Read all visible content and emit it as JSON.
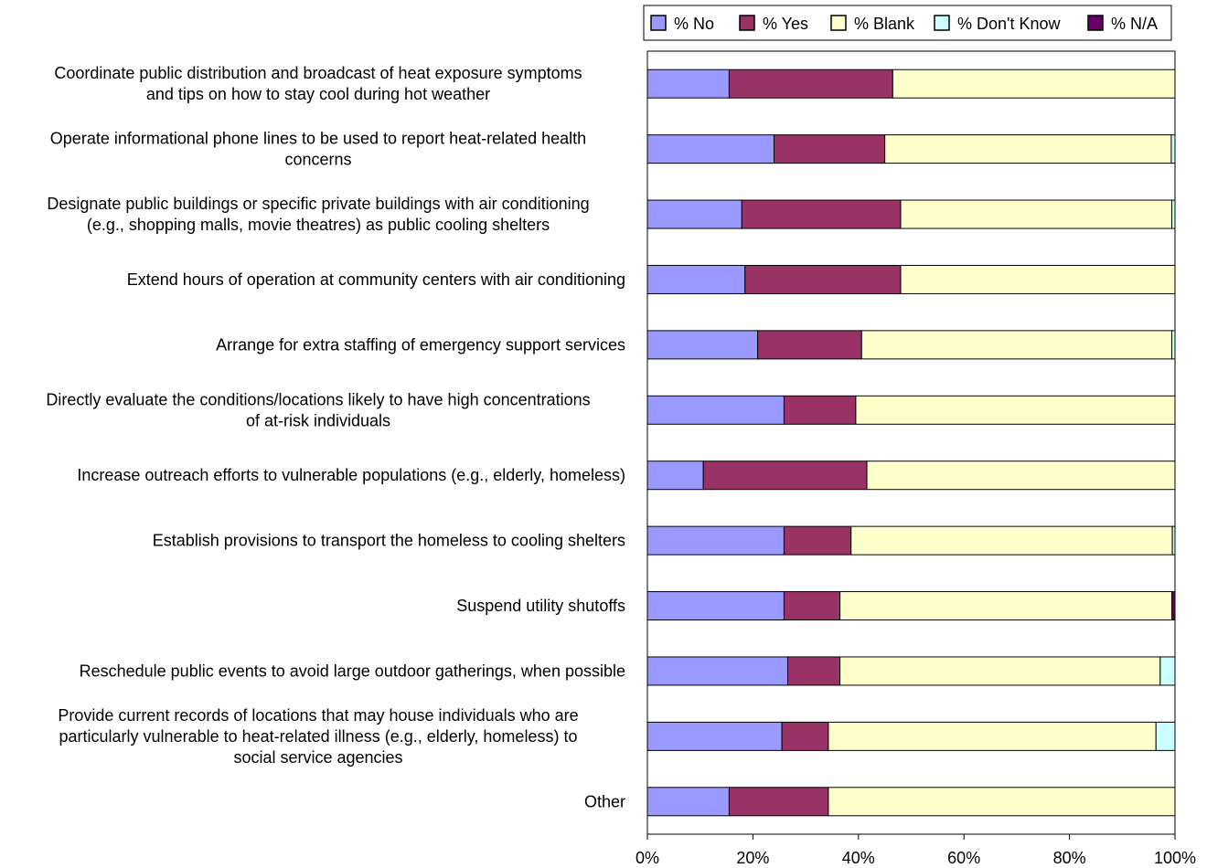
{
  "chart_data": {
    "type": "bar",
    "orientation": "horizontal",
    "stacked": true,
    "percent": true,
    "grid": true,
    "legend_position": "top",
    "categories": [
      "Coordinate public distribution and broadcast of heat exposure symptoms\nand tips on how to stay cool during hot weather",
      "Operate informational phone lines to be used to report heat-related health\nconcerns",
      "Designate public buildings or specific private buildings with air conditioning\n(e.g., shopping malls, movie theatres) as public cooling shelters",
      "Extend hours of operation at community centers with air conditioning",
      "Arrange for extra staffing of emergency support services",
      "Directly evaluate the conditions/locations likely to have high concentrations\nof at-risk individuals",
      "Increase outreach efforts to vulnerable populations (e.g., elderly, homeless)",
      "Establish provisions to transport the homeless to cooling shelters",
      "Suspend utility shutoffs",
      "Reschedule public events to avoid large outdoor gatherings, when possible",
      "Provide current records of locations that may house individuals who are\nparticularly vulnerable to heat-related illness (e.g., elderly, homeless) to\nsocial service agencies",
      "Other"
    ],
    "series": [
      {
        "name": "% No",
        "color": "#9999ff",
        "values": [
          15.5,
          24.0,
          17.9,
          18.5,
          20.9,
          25.9,
          10.6,
          25.9,
          25.9,
          26.6,
          25.5,
          15.5
        ]
      },
      {
        "name": "% Yes",
        "color": "#993366",
        "values": [
          31.0,
          21.0,
          30.1,
          29.5,
          19.7,
          13.6,
          31.0,
          12.7,
          10.6,
          9.9,
          8.8,
          18.8
        ]
      },
      {
        "name": "% Blank",
        "color": "#ffffcc",
        "values": [
          53.5,
          54.3,
          51.4,
          52.0,
          58.8,
          60.5,
          58.4,
          60.9,
          62.9,
          60.7,
          62.1,
          65.7
        ]
      },
      {
        "name": "% Don't Know",
        "color": "#ccffff",
        "values": [
          0,
          0.7,
          0.6,
          0,
          0.6,
          0,
          0,
          0.5,
          0,
          2.8,
          3.6,
          0
        ]
      },
      {
        "name": "% N/A",
        "color": "#660066",
        "values": [
          0,
          0,
          0,
          0,
          0,
          0,
          0,
          0,
          0.6,
          0,
          0,
          0
        ]
      }
    ],
    "xlim": [
      0,
      100
    ],
    "xticks": [
      "0%",
      "20%",
      "40%",
      "60%",
      "80%",
      "100%"
    ],
    "title": "",
    "xlabel": "",
    "ylabel": ""
  }
}
